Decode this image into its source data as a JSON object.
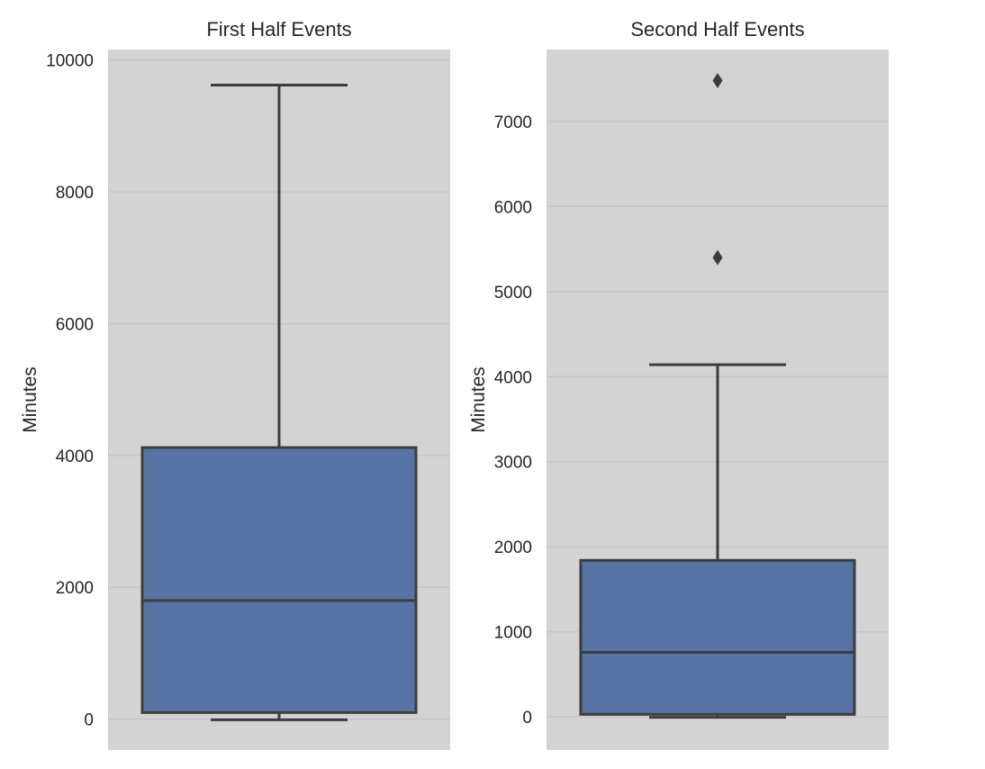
{
  "chart_data": [
    {
      "type": "box",
      "title": "First Half Events",
      "xlabel": "",
      "ylabel": "Minutes",
      "ylim": [
        -470,
        10160
      ],
      "yticks": [
        0,
        2000,
        4000,
        6000,
        8000,
        10000
      ],
      "grid": true,
      "box": {
        "whisker_low": -10,
        "q1": 100,
        "median": 1800,
        "q3": 4120,
        "whisker_high": 9620
      },
      "outliers": [],
      "colors": {
        "box": "#5874a4",
        "background": "#d3d3d3",
        "line": "#3d3d3d",
        "grid": "#c6c6c6"
      }
    },
    {
      "type": "box",
      "title": "Second Half Events",
      "xlabel": "",
      "ylabel": "Minutes",
      "ylim": [
        -390,
        7845
      ],
      "yticks": [
        0,
        1000,
        2000,
        3000,
        4000,
        5000,
        6000,
        7000
      ],
      "grid": true,
      "box": {
        "whisker_low": -5,
        "q1": 30,
        "median": 760,
        "q3": 1840,
        "whisker_high": 4140
      },
      "outliers": [
        5400,
        7480
      ],
      "colors": {
        "box": "#5874a4",
        "background": "#d3d3d3",
        "line": "#3d3d3d",
        "grid": "#c6c6c6"
      }
    }
  ]
}
